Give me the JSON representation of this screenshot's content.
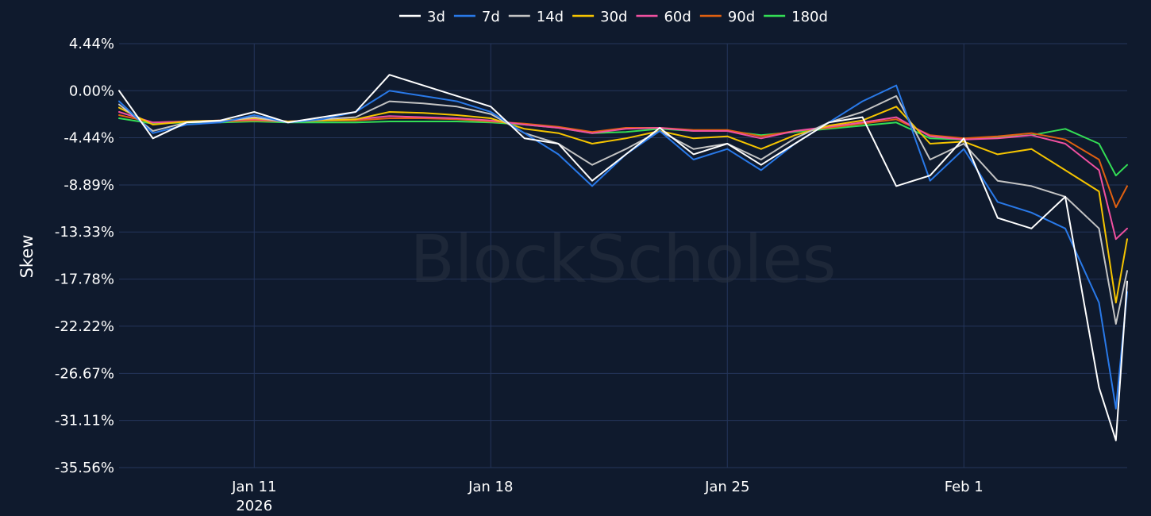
{
  "watermark": "BlockScholes",
  "chart_data": {
    "type": "line",
    "ylabel": "Skew",
    "xlabel": "",
    "y_tick_labels": [
      "4.44%",
      "0.00%",
      "-4.44%",
      "-8.89%",
      "-13.33%",
      "-17.78%",
      "-22.22%",
      "-26.67%",
      "-31.11%",
      "-35.56%"
    ],
    "y_ticks": [
      4.44,
      0,
      -4.44,
      -8.89,
      -13.33,
      -17.78,
      -22.22,
      -26.67,
      -31.11,
      -35.56
    ],
    "ylim": [
      -35.56,
      4.44
    ],
    "xlim": [
      "2026-01-07",
      "2026-02-05T20:00"
    ],
    "x_ticks": [
      {
        "date": "2026-01-11",
        "label": "Jan 11",
        "sublabel": "2026"
      },
      {
        "date": "2026-01-18",
        "label": "Jan 18",
        "sublabel": ""
      },
      {
        "date": "2026-01-25",
        "label": "Jan 25",
        "sublabel": ""
      },
      {
        "date": "2026-02-01",
        "label": "Feb 1",
        "sublabel": ""
      }
    ],
    "grid": true,
    "legend_position": "top-center",
    "x": [
      "2026-01-07",
      "2026-01-08",
      "2026-01-09",
      "2026-01-10",
      "2026-01-11",
      "2026-01-12",
      "2026-01-13",
      "2026-01-14",
      "2026-01-15",
      "2026-01-16",
      "2026-01-17",
      "2026-01-18",
      "2026-01-19",
      "2026-01-20",
      "2026-01-21",
      "2026-01-22",
      "2026-01-23",
      "2026-01-24",
      "2026-01-25",
      "2026-01-26",
      "2026-01-27",
      "2026-01-28",
      "2026-01-29",
      "2026-01-30",
      "2026-01-31",
      "2026-02-01",
      "2026-02-02",
      "2026-02-03",
      "2026-02-04",
      "2026-02-05",
      "2026-02-05T12:00",
      "2026-02-05T20:00"
    ],
    "series": [
      {
        "name": "3d",
        "color": "#ffffff",
        "values": [
          0.0,
          -4.5,
          -3.0,
          -2.8,
          -2.0,
          -3.0,
          -2.5,
          -2.0,
          1.5,
          0.5,
          -0.5,
          -1.5,
          -4.5,
          -5.0,
          -8.5,
          -6.0,
          -3.5,
          -6.0,
          -5.0,
          -7.0,
          -5.0,
          -3.0,
          -2.5,
          -9.0,
          -8.0,
          -4.5,
          -12.0,
          -13.0,
          -10.0,
          -28.0,
          -33.0,
          -18.0
        ]
      },
      {
        "name": "7d",
        "color": "#2979e8",
        "values": [
          -1.0,
          -4.0,
          -3.2,
          -3.0,
          -2.3,
          -3.0,
          -2.7,
          -2.0,
          0.0,
          -0.5,
          -1.0,
          -2.0,
          -4.0,
          -6.0,
          -9.0,
          -6.0,
          -3.8,
          -6.5,
          -5.5,
          -7.5,
          -5.0,
          -3.0,
          -1.0,
          0.5,
          -8.5,
          -5.5,
          -10.5,
          -11.5,
          -13.0,
          -20.0,
          -30.0,
          -19.0
        ]
      },
      {
        "name": "14d",
        "color": "#c4c4c4",
        "values": [
          -1.3,
          -3.8,
          -3.0,
          -2.9,
          -2.5,
          -3.0,
          -2.7,
          -2.5,
          -1.0,
          -1.2,
          -1.5,
          -2.2,
          -4.0,
          -5.0,
          -7.0,
          -5.5,
          -3.8,
          -5.5,
          -5.0,
          -6.5,
          -4.5,
          -3.0,
          -2.0,
          -0.5,
          -6.5,
          -5.0,
          -8.5,
          -9.0,
          -10.0,
          -13.0,
          -22.0,
          -17.0
        ]
      },
      {
        "name": "30d",
        "color": "#f5c400",
        "values": [
          -1.6,
          -3.2,
          -2.9,
          -2.8,
          -2.6,
          -2.9,
          -2.8,
          -2.7,
          -2.0,
          -2.1,
          -2.3,
          -2.6,
          -3.6,
          -4.0,
          -5.0,
          -4.5,
          -3.8,
          -4.5,
          -4.3,
          -5.5,
          -4.2,
          -3.3,
          -2.8,
          -1.5,
          -5.0,
          -4.8,
          -6.0,
          -5.5,
          -7.5,
          -9.5,
          -20.0,
          -14.0
        ]
      },
      {
        "name": "60d",
        "color": "#f050a0",
        "values": [
          -2.0,
          -3.0,
          -2.9,
          -2.8,
          -2.7,
          -2.9,
          -2.8,
          -2.7,
          -2.4,
          -2.5,
          -2.6,
          -2.8,
          -3.2,
          -3.5,
          -4.0,
          -3.6,
          -3.5,
          -3.8,
          -3.8,
          -4.5,
          -3.8,
          -3.4,
          -3.0,
          -2.5,
          -4.3,
          -4.6,
          -4.5,
          -4.2,
          -5.0,
          -7.5,
          -14.0,
          -13.0
        ]
      },
      {
        "name": "90d",
        "color": "#e06010",
        "values": [
          -2.3,
          -3.0,
          -2.9,
          -2.9,
          -2.8,
          -2.9,
          -2.8,
          -2.8,
          -2.6,
          -2.6,
          -2.7,
          -2.9,
          -3.1,
          -3.4,
          -3.9,
          -3.5,
          -3.5,
          -3.7,
          -3.7,
          -4.3,
          -3.8,
          -3.5,
          -3.1,
          -2.7,
          -4.2,
          -4.5,
          -4.3,
          -4.0,
          -4.6,
          -6.5,
          -11.0,
          -9.0
        ]
      },
      {
        "name": "180d",
        "color": "#33dd55",
        "values": [
          -2.6,
          -3.1,
          -3.0,
          -3.0,
          -2.9,
          -3.0,
          -3.0,
          -3.0,
          -2.9,
          -2.9,
          -2.9,
          -3.0,
          -3.2,
          -3.5,
          -4.0,
          -3.9,
          -3.6,
          -3.8,
          -3.8,
          -4.2,
          -3.9,
          -3.6,
          -3.3,
          -3.0,
          -4.5,
          -4.6,
          -4.4,
          -4.2,
          -3.6,
          -5.0,
          -8.0,
          -7.0
        ]
      }
    ]
  }
}
